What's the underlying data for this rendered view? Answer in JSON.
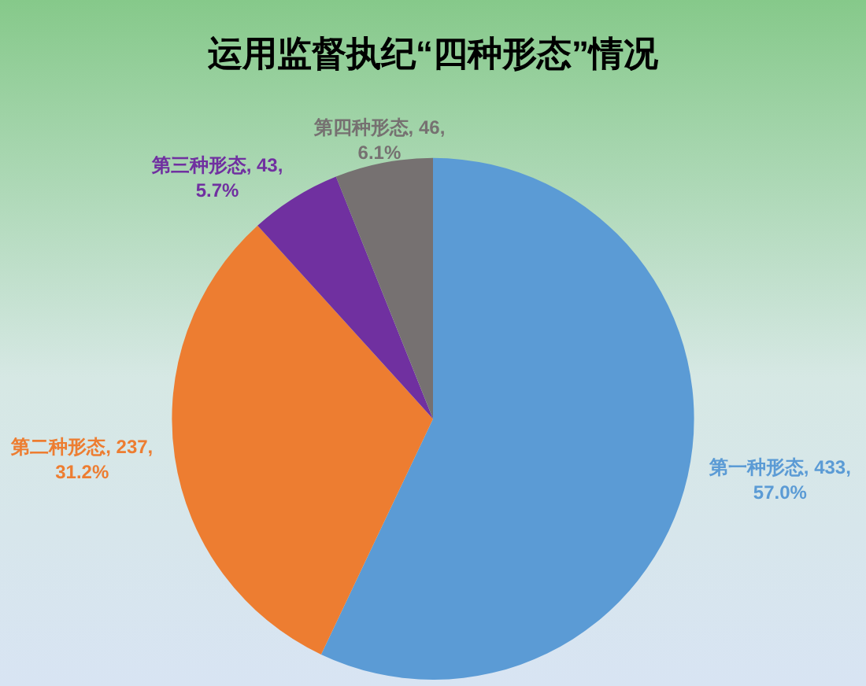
{
  "chart_data": {
    "type": "pie",
    "title": "运用监督执纪“四种形态”情况",
    "categories": [
      "第一种形态",
      "第二种形态",
      "第三种形态",
      "第四种形态"
    ],
    "values": [
      433,
      237,
      43,
      46
    ],
    "colors": [
      "#5b9bd5",
      "#ed7d31",
      "#7030a0",
      "#767171"
    ],
    "value_labels": [
      "433, 57.0%",
      "237, 31.2%",
      "43, 5.7%",
      "46, 6.1%"
    ],
    "legend": false
  }
}
